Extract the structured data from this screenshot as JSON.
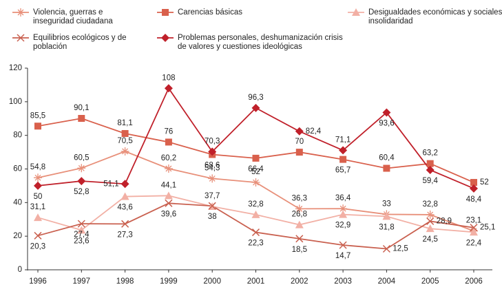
{
  "chart_data": {
    "type": "line",
    "categories": [
      "1996",
      "1997",
      "1998",
      "1999",
      "2000",
      "2001",
      "2002",
      "2003",
      "2004",
      "2005",
      "2006"
    ],
    "ylim": [
      0,
      120
    ],
    "yticks": [
      0,
      20,
      40,
      60,
      80,
      100,
      120
    ],
    "grid": false,
    "series": [
      {
        "name": "Violencia, guerras e inseguridad ciudadana",
        "color": "#e8907a",
        "marker": "star",
        "values": [
          54.8,
          60.5,
          70.5,
          60.2,
          54.3,
          52,
          36.3,
          36.4,
          33,
          32.8,
          23.1
        ],
        "value_labels": [
          "54,8",
          "60,5",
          "70,5",
          "60,2",
          "54,3",
          "52",
          "36,3",
          "36,4",
          "33",
          "32,8",
          "23,1"
        ]
      },
      {
        "name": "Carencias básicas",
        "color": "#d9604c",
        "marker": "square",
        "values": [
          85.5,
          90.1,
          81.1,
          76,
          68.6,
          66.4,
          70,
          65.7,
          60.4,
          63.2,
          52
        ],
        "value_labels": [
          "85,5",
          "90,1",
          "81,1",
          "76",
          "68,6",
          "66,4",
          "70",
          "65,7",
          "60,4",
          "63,2",
          "52"
        ]
      },
      {
        "name": "Desigualdades económicas y sociales e insolidaridad",
        "color": "#f2b0a5",
        "marker": "triangle",
        "values": [
          31.1,
          23.6,
          43.6,
          44.1,
          37.7,
          32.8,
          26.8,
          32.9,
          31.8,
          24.5,
          22.4
        ],
        "value_labels": [
          "31,1",
          "23,6",
          "43,6",
          "44,1",
          "37,7",
          "32,8",
          "26,8",
          "32,9",
          "31,8",
          "24,5",
          "22,4"
        ]
      },
      {
        "name": "Equilibrios ecológicos y de población",
        "color": "#c9604f",
        "marker": "x",
        "values": [
          20.3,
          27.4,
          27.3,
          39.6,
          38,
          22.3,
          18.5,
          14.7,
          12.5,
          28.9,
          25.1
        ],
        "value_labels": [
          "20,3",
          "27,4",
          "27,3",
          "39,6",
          "38",
          "22,3",
          "18,5",
          "14,7",
          "12,5",
          "28,9",
          "25,1"
        ]
      },
      {
        "name": "Problemas personales, deshumanización crisis de valores y cuestiones ideológicas",
        "color": "#c0202a",
        "marker": "diamond",
        "values": [
          50,
          52.8,
          51.1,
          108,
          70.3,
          96.3,
          82.4,
          71.1,
          93.6,
          59.4,
          48.4
        ],
        "value_labels": [
          "50",
          "52,8",
          "51,1",
          "108",
          "70,3",
          "96,3",
          "82,4",
          "71,1",
          "93,6",
          "59,4",
          "48,4"
        ]
      }
    ]
  }
}
